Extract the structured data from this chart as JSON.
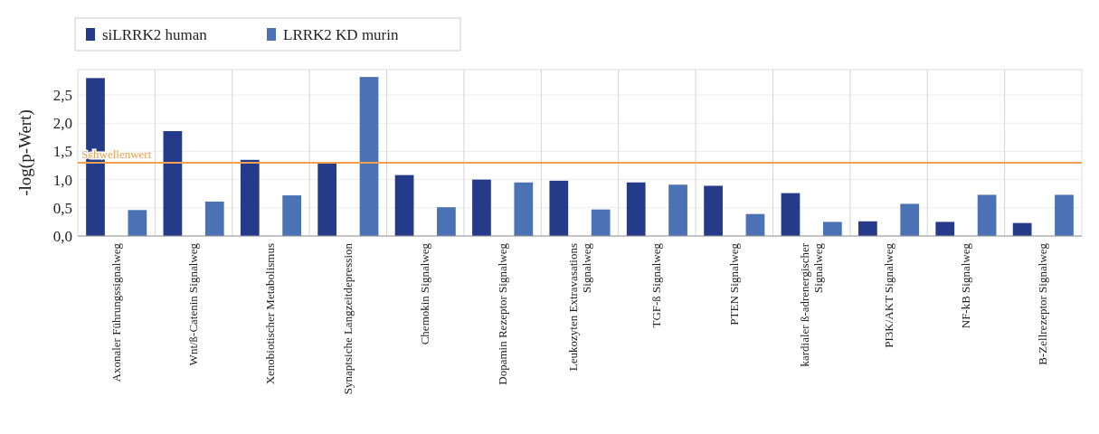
{
  "chart_data": {
    "type": "bar",
    "ylabel": "-log(p-Wert)",
    "categories": [
      "Axonaler Führungssignalweg",
      "Wnt/ß-Catenin Signalweg",
      "Xenobiotischer Metabolismus",
      "Synaptsiche Langzeitdepression",
      "Chemokin Signalweg",
      "Dopamin Rezeptor Signalweg",
      "Leukozyten Extravasations Signalweg",
      "TGF-ß Signalweg",
      "PTEN  Signalweg",
      "kardialer ß-adrenergischer Signalweg",
      "PI3K/AKT Signalweg",
      "NF-kB Signalweg",
      "B-Zellrezeptor Signalweg"
    ],
    "series": [
      {
        "name": "siLRRK2 human",
        "color": "#263a8a",
        "values": [
          2.8,
          1.86,
          1.35,
          1.31,
          1.08,
          1.0,
          0.98,
          0.95,
          0.89,
          0.76,
          0.26,
          0.25,
          0.23
        ]
      },
      {
        "name": "LRRK2 KD murin",
        "color": "#4a72b4",
        "values": [
          0.46,
          0.61,
          0.72,
          2.82,
          0.51,
          0.95,
          0.47,
          0.91,
          0.39,
          0.25,
          0.57,
          0.73,
          0.73
        ]
      }
    ],
    "ylim": [
      0,
      2.95
    ],
    "yticks": [
      {
        "value": 0,
        "label": "0,0"
      },
      {
        "value": 0.5,
        "label": "0,5"
      },
      {
        "value": 1,
        "label": "1,0"
      },
      {
        "value": 1.5,
        "label": "1,5"
      },
      {
        "value": 2,
        "label": "2,0"
      },
      {
        "value": 2.5,
        "label": "2,5"
      }
    ],
    "ref_lines": [
      {
        "axis": "y",
        "value": 1.3,
        "label": "Schwellenwert",
        "color": "#f0a050"
      }
    ],
    "grid": true,
    "legend": "top left"
  }
}
